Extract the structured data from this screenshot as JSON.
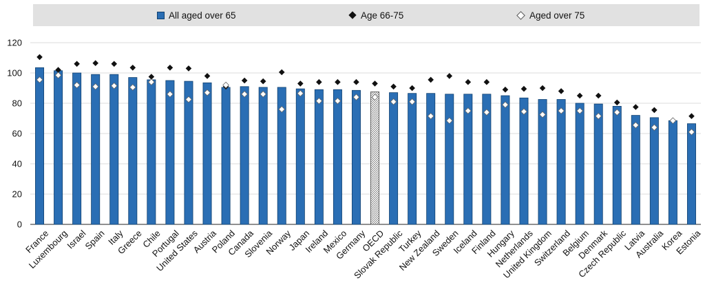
{
  "chart_data": {
    "type": "bar",
    "title": "",
    "xlabel": "",
    "ylabel": "",
    "ylim": [
      0,
      120
    ],
    "yticks": [
      0,
      20,
      40,
      60,
      80,
      100,
      120
    ],
    "grid": true,
    "legend_position": "top",
    "categories": [
      "France",
      "Luxembourg",
      "Israel",
      "Spain",
      "Italy",
      "Greece",
      "Chile",
      "Portugal",
      "United States",
      "Austria",
      "Poland",
      "Canada",
      "Slovenia",
      "Norway",
      "Japan",
      "Ireland",
      "Mexico",
      "Germany",
      "OECD",
      "Slovak Republic",
      "Turkey",
      "New Zealand",
      "Sweden",
      "Iceland",
      "Finland",
      "Hungary",
      "Netherlands",
      "United Kingdom",
      "Switzerland",
      "Belgium",
      "Denmark",
      "Czech Republic",
      "Latvia",
      "Australia",
      "Korea",
      "Estonia"
    ],
    "highlight_category": "OECD",
    "series": [
      {
        "name": "All aged over 65",
        "marker": "bar",
        "values": [
          103.5,
          101.5,
          100,
          99,
          99,
          97,
          95.5,
          95,
          94.5,
          93.5,
          90.5,
          91,
          90.5,
          90.5,
          89.5,
          89,
          89,
          88.5,
          87.5,
          87,
          86.5,
          86.5,
          86,
          86,
          86,
          85,
          83.5,
          82.5,
          82.5,
          80,
          79.5,
          78,
          72,
          70.5,
          68.5,
          66.5
        ]
      },
      {
        "name": "Age 66-75",
        "marker": "diamond-filled",
        "values": [
          110.5,
          102,
          106,
          106.5,
          106,
          103.5,
          97.5,
          103.5,
          103,
          98,
          91,
          95,
          94.5,
          100.5,
          93,
          94,
          94,
          94,
          93,
          91,
          90,
          95.5,
          98,
          94,
          94,
          89,
          89.5,
          90,
          88,
          85,
          85,
          80.5,
          77.5,
          75.5,
          68.5,
          71.5
        ]
      },
      {
        "name": "Aged over 75",
        "marker": "diamond-open",
        "values": [
          95.5,
          98.5,
          92,
          91,
          91.5,
          90.5,
          94,
          86,
          82.5,
          87,
          92,
          86,
          86,
          76,
          86.5,
          81.5,
          81.5,
          84,
          84,
          81,
          81,
          71.5,
          68.5,
          75,
          74,
          79,
          74.5,
          72.5,
          75,
          75,
          71.5,
          74,
          65.5,
          64,
          68.5,
          61
        ]
      }
    ],
    "colors": {
      "bar": "#2a6eb4",
      "bar_edge": "#10406f",
      "dark_marker": "#111111",
      "grid": "#cfcfcf",
      "legend_bg": "#e1e1e1"
    }
  },
  "legend": {
    "item1": "All aged over 65",
    "item2": "Age 66-75",
    "item3": "Aged over 75"
  }
}
